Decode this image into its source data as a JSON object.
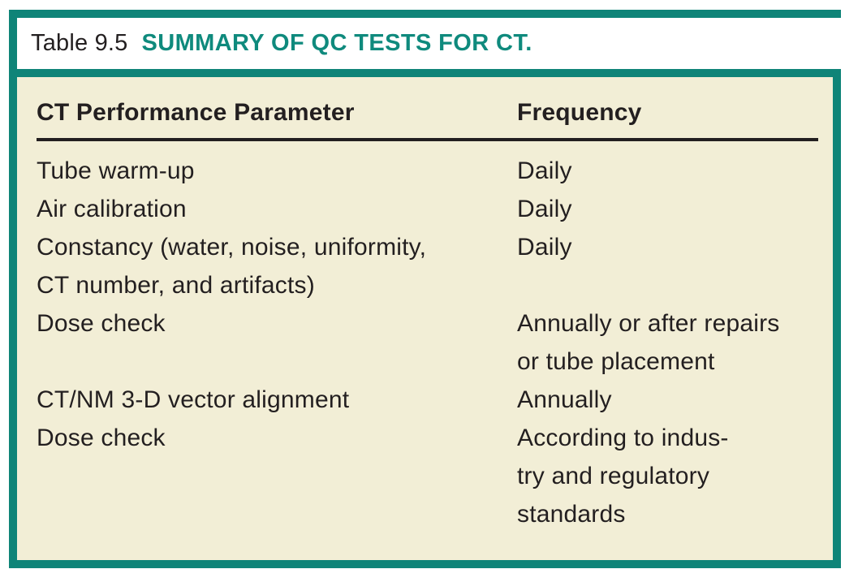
{
  "table": {
    "label": "Table 9.5",
    "title": "SUMMARY OF QC TESTS FOR CT.",
    "columns": [
      "CT Performance Parameter",
      "Frequency"
    ],
    "rows": [
      {
        "parameter": "Tube warm-up",
        "frequency": "Daily"
      },
      {
        "parameter": "Air calibration",
        "frequency": "Daily"
      },
      {
        "parameter": "Constancy (water, noise, uniformity,\nCT number, and artifacts)",
        "frequency": "Daily"
      },
      {
        "parameter": "Dose check",
        "frequency": "Annually or after repairs\nor tube placement"
      },
      {
        "parameter": "CT/NM 3-D vector alignment",
        "frequency": "Annually"
      },
      {
        "parameter": "Dose check",
        "frequency": "According to indus-\ntry and regulatory\nstandards"
      }
    ],
    "colors": {
      "teal": "#0F8478",
      "teal_title_text": "#0F8A7D",
      "cream_body": "#F2EED6",
      "text_black": "#231F20"
    }
  }
}
